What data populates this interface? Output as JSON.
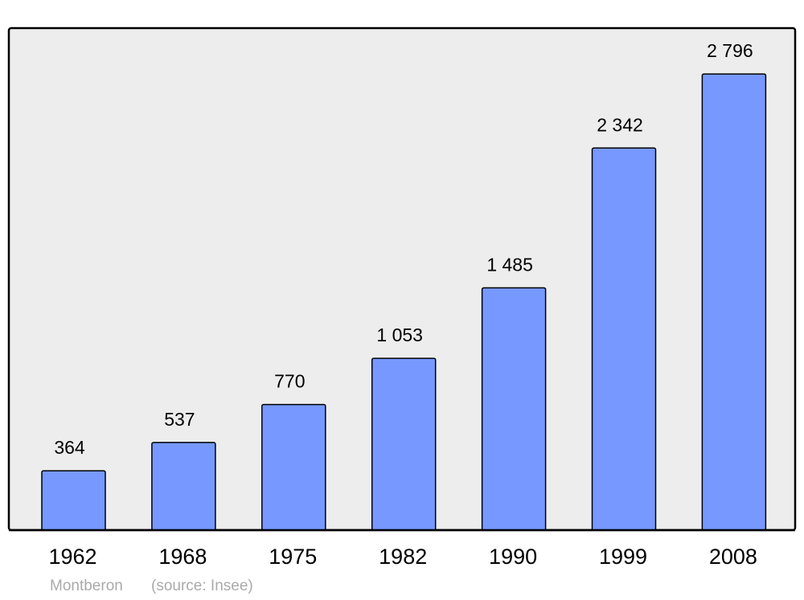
{
  "chart_data": {
    "type": "bar",
    "categories": [
      "1962",
      "1968",
      "1975",
      "1982",
      "1990",
      "1999",
      "2008"
    ],
    "values": [
      364,
      537,
      770,
      1053,
      1485,
      2342,
      2796
    ],
    "value_labels": [
      "364",
      "537",
      "770",
      "1 053",
      "1 485",
      "2 342",
      "2 796"
    ],
    "color": "#7799ff",
    "ylim": [
      0,
      3077
    ],
    "annotations": [
      "Montberon",
      "(source: Insee)"
    ]
  }
}
